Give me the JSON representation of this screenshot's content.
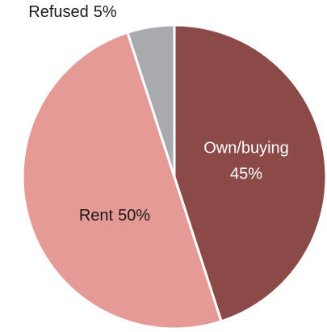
{
  "chart_data": {
    "type": "pie",
    "categories": [
      "Own/buying",
      "Rent",
      "Refused"
    ],
    "values": [
      45,
      50,
      5
    ],
    "value_labels": [
      "45%",
      "50%",
      "5%"
    ],
    "colors": [
      "#8b4a47",
      "#e59a95",
      "#a9aaae"
    ]
  }
}
